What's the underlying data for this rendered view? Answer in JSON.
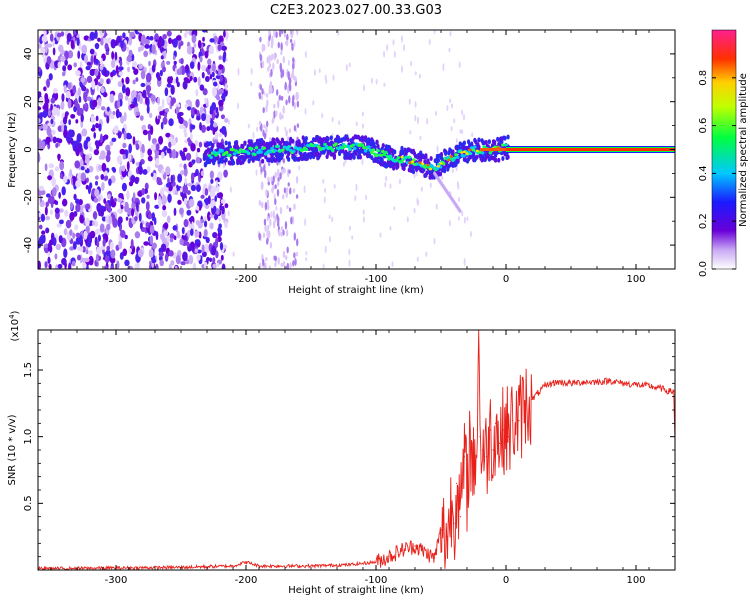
{
  "title": "C2E3.2023.027.00.33.G03",
  "chart_data": [
    {
      "type": "heatmap",
      "xlabel": "Height of straight line (km)",
      "ylabel": "Frequency (Hz)",
      "xlim": [
        -360,
        130
      ],
      "ylim": [
        -50,
        50
      ],
      "x_ticks": [
        -300,
        -200,
        -100,
        0,
        100
      ],
      "y_ticks": [
        -40,
        -20,
        0,
        20,
        40
      ],
      "colorbar": {
        "label": "Normalized spectral amplitude",
        "range": [
          0.0,
          1.0
        ],
        "ticks": [
          "0.0",
          "0.2",
          "0.4",
          "0.6",
          "0.8"
        ],
        "colormap": [
          "#ffffff",
          "#6a00d8",
          "#1a1aff",
          "#00c8ff",
          "#00ff40",
          "#ffff00",
          "#ff3000",
          "#ff2090"
        ]
      },
      "features": {
        "noise_region_km": [
          -360,
          -225
        ],
        "noise_band_km": [
          -190,
          -160
        ],
        "ridge": [
          [
            -230,
            -2
          ],
          [
            -200,
            -1
          ],
          [
            -170,
            0
          ],
          [
            -140,
            1
          ],
          [
            -110,
            1
          ],
          [
            -90,
            -3
          ],
          [
            -70,
            -5
          ],
          [
            -55,
            -8
          ],
          [
            -45,
            -4
          ],
          [
            -30,
            -1
          ],
          [
            -20,
            0
          ],
          [
            -5,
            0
          ],
          [
            0,
            1
          ]
        ],
        "tail": [
          [
            -55,
            -10
          ],
          [
            -45,
            -18
          ],
          [
            -35,
            -26
          ]
        ],
        "steady_line_km": [
          0,
          130
        ],
        "steady_line_freq_hz": 0
      },
      "grid": false
    },
    {
      "type": "line",
      "xlabel": "Height of straight line (km)",
      "ylabel": "SNR (10 * v/v)",
      "multiplier": "(x10",
      "multiplier_exp": "4",
      "multiplier_close": ")",
      "xlim": [
        -360,
        130
      ],
      "ylim": [
        0,
        1.8
      ],
      "x_ticks": [
        -300,
        -200,
        -100,
        0,
        100
      ],
      "y_ticks": [
        0.5,
        1.0,
        1.5
      ],
      "y_tick_labels": [
        "0.5",
        "1.0",
        "1.5"
      ],
      "series_color": "#e8201a",
      "series": [
        {
          "x": [
            -360,
            -300,
            -250,
            -210,
            -200,
            -190,
            -150,
            -120,
            -100,
            -90,
            -80,
            -70,
            -60,
            -55,
            -50,
            -45,
            -42,
            -40,
            -38,
            -35,
            -32,
            -30,
            -28,
            -25,
            -22,
            -21,
            -20,
            -18,
            -15,
            -12,
            -10,
            -8,
            -5,
            -2,
            0,
            2,
            5,
            10,
            15,
            20,
            25,
            30,
            35,
            40,
            50,
            60,
            70,
            80,
            90,
            100,
            110,
            120,
            125,
            129,
            130
          ],
          "y": [
            0.01,
            0.015,
            0.02,
            0.03,
            0.06,
            0.03,
            0.03,
            0.04,
            0.06,
            0.1,
            0.15,
            0.18,
            0.12,
            0.09,
            0.3,
            0.25,
            0.5,
            0.35,
            0.65,
            0.4,
            0.85,
            0.6,
            0.95,
            0.75,
            1.05,
            1.8,
            1.0,
            0.9,
            0.85,
            1.05,
            0.9,
            1.1,
            0.95,
            1.05,
            1.1,
            1.0,
            1.12,
            1.12,
            1.25,
            1.28,
            1.33,
            1.38,
            1.4,
            1.41,
            1.4,
            1.41,
            1.41,
            1.42,
            1.4,
            1.39,
            1.38,
            1.36,
            1.34,
            1.34,
            0.95
          ]
        }
      ],
      "grid": false
    }
  ]
}
